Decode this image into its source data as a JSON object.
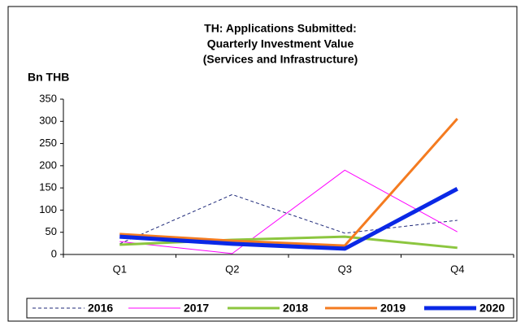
{
  "chart_data": {
    "type": "line",
    "title": [
      "TH: Applications Submitted:",
      "Quarterly Investment Value",
      "(Services and Infrastructure)"
    ],
    "y_axis_label": "Bn THB",
    "categories": [
      "Q1",
      "Q2",
      "Q3",
      "Q4"
    ],
    "ylim": [
      0,
      350
    ],
    "yticks": [
      0,
      50,
      100,
      150,
      200,
      250,
      300,
      350
    ],
    "legend": "bottom",
    "series": [
      {
        "name": "2016",
        "color": "#1f2a7a",
        "width": 1,
        "dash": true,
        "values": [
          24,
          135,
          48,
          77
        ]
      },
      {
        "name": "2017",
        "color": "#ff00ff",
        "width": 1,
        "dash": false,
        "values": [
          29,
          2,
          190,
          51
        ]
      },
      {
        "name": "2018",
        "color": "#8cc63f",
        "width": 3,
        "dash": false,
        "values": [
          22,
          33,
          40,
          15
        ]
      },
      {
        "name": "2019",
        "color": "#f47b20",
        "width": 3,
        "dash": false,
        "values": [
          46,
          31,
          20,
          306
        ]
      },
      {
        "name": "2020",
        "color": "#0a28e6",
        "width": 5,
        "dash": false,
        "values": [
          40,
          24,
          13,
          148
        ]
      }
    ]
  }
}
